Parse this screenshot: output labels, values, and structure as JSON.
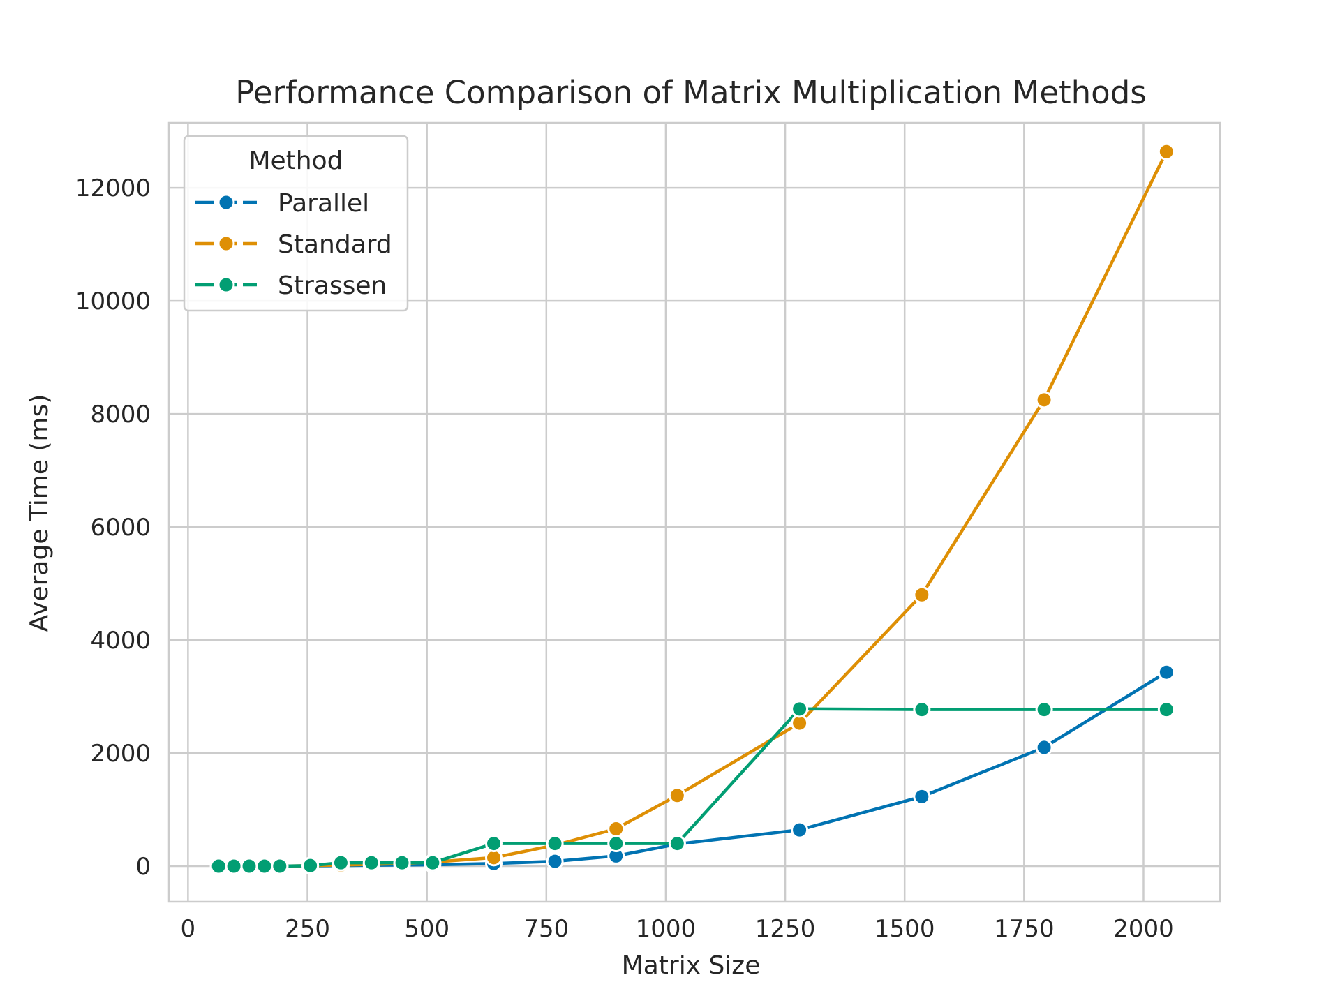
{
  "chart_data": {
    "type": "line",
    "title": "Performance Comparison of Matrix Multiplication Methods",
    "xlabel": "Matrix Size",
    "ylabel": "Average Time (ms)",
    "xlim": [
      -40,
      2160
    ],
    "ylim": [
      -630,
      13150
    ],
    "xticks": [
      0,
      250,
      500,
      750,
      1000,
      1250,
      1500,
      1750,
      2000
    ],
    "yticks": [
      0,
      2000,
      4000,
      6000,
      8000,
      10000,
      12000
    ],
    "grid": true,
    "legend": {
      "title": "Method",
      "placement": "top-left"
    },
    "series": [
      {
        "name": "Parallel",
        "color": "#0173b2",
        "x": [
          64,
          96,
          128,
          160,
          192,
          256,
          320,
          384,
          448,
          512,
          640,
          768,
          896,
          1024,
          1280,
          1536,
          1792,
          2048
        ],
        "y": [
          0,
          0,
          0,
          0,
          0,
          5,
          10,
          15,
          20,
          25,
          45,
          85,
          180,
          390,
          640,
          1230,
          2100,
          3430
        ]
      },
      {
        "name": "Standard",
        "color": "#de8f05",
        "x": [
          64,
          96,
          128,
          160,
          192,
          256,
          320,
          384,
          448,
          512,
          640,
          768,
          896,
          1024,
          1280,
          1536,
          1792,
          2048
        ],
        "y": [
          0,
          0,
          0,
          0,
          0,
          10,
          20,
          30,
          45,
          70,
          150,
          370,
          660,
          1250,
          2530,
          4800,
          8250,
          12640
        ]
      },
      {
        "name": "Strassen",
        "color": "#029e73",
        "x": [
          64,
          96,
          128,
          160,
          192,
          256,
          320,
          384,
          448,
          512,
          640,
          768,
          896,
          1024,
          1280,
          1536,
          1792,
          2048
        ],
        "y": [
          0,
          0,
          0,
          0,
          0,
          10,
          60,
          60,
          60,
          60,
          400,
          400,
          400,
          400,
          2780,
          2770,
          2770,
          2770
        ]
      }
    ]
  }
}
